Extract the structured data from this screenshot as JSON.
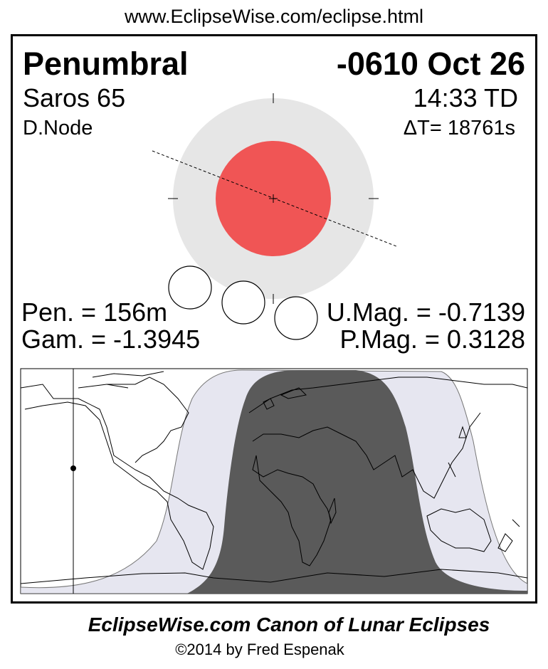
{
  "header_url": "www.EclipseWise.com/eclipse.html",
  "eclipse": {
    "type": "Penumbral",
    "date": "-0610 Oct 26",
    "saros": "Saros  65",
    "time": "14:33 TD",
    "node": "D.Node",
    "delta_t": "ΔT=  18761s",
    "pen_duration": "Pen. = 156m",
    "gamma": "Gam. = -1.3945",
    "umbral_mag": "U.Mag. = -0.7139",
    "penumbral_mag": "P.Mag. = 0.3128"
  },
  "colors": {
    "penumbra": "#e6e6e6",
    "umbra": "#f05555",
    "map_penumbral_zone": "#e6e6f0",
    "map_total_visibility": "#5a5a5a"
  },
  "footer": {
    "title": "EclipseWise.com Canon of Lunar Eclipses",
    "copyright": "©2014 by Fred Espenak"
  }
}
